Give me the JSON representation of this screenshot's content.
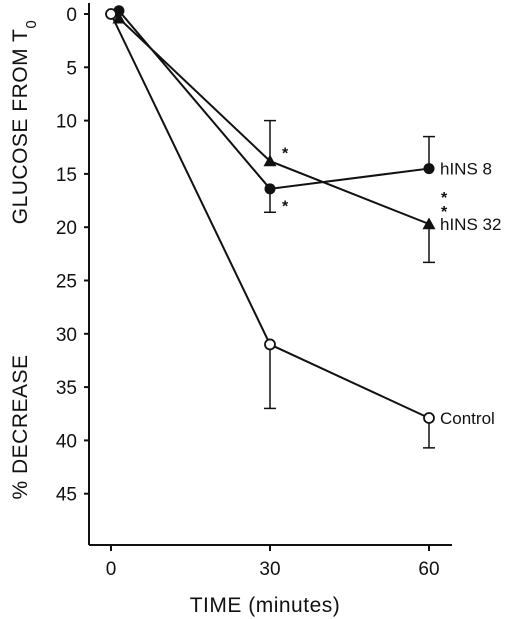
{
  "chart_data": {
    "type": "line",
    "xlabel": "TIME (minutes)",
    "ylabel_main": "% DECREASE",
    "ylabel_sub": "GLUCOSE FROM T",
    "ylabel_subscript": "0",
    "x_ticks": [
      0,
      30,
      60
    ],
    "y_ticks": [
      0,
      5,
      10,
      15,
      20,
      25,
      30,
      35,
      40,
      45
    ],
    "xlim": [
      -2,
      66
    ],
    "ylim": [
      0,
      50
    ],
    "y_inverted": true,
    "series": [
      {
        "name": "hINS 8",
        "marker": "circle-filled",
        "points": [
          {
            "x": 1.5,
            "y": -0.3
          },
          {
            "x": 30,
            "y": 16.4,
            "err_low": 2.2
          },
          {
            "x": 60,
            "y": 14.5,
            "err_high": 3.0
          }
        ]
      },
      {
        "name": "hINS 32",
        "marker": "triangle-filled",
        "points": [
          {
            "x": 1.5,
            "y": 0.4
          },
          {
            "x": 30,
            "y": 13.8,
            "err_high": 3.8
          },
          {
            "x": 60,
            "y": 19.7,
            "err_low": 3.6
          }
        ]
      },
      {
        "name": "Control",
        "marker": "circle-open",
        "points": [
          {
            "x": 0,
            "y": 0
          },
          {
            "x": 30,
            "y": 31.0,
            "err_low": 6.0
          },
          {
            "x": 60,
            "y": 37.9,
            "err_low": 2.8
          }
        ]
      }
    ],
    "annotations": [
      {
        "text": "*",
        "x": 30,
        "y": 12.6
      },
      {
        "text": "*",
        "x": 30,
        "y": 17.6
      },
      {
        "text": "*",
        "x": 60,
        "y": 16.8
      },
      {
        "text": "*",
        "x": 60,
        "y": 18.1
      }
    ]
  }
}
